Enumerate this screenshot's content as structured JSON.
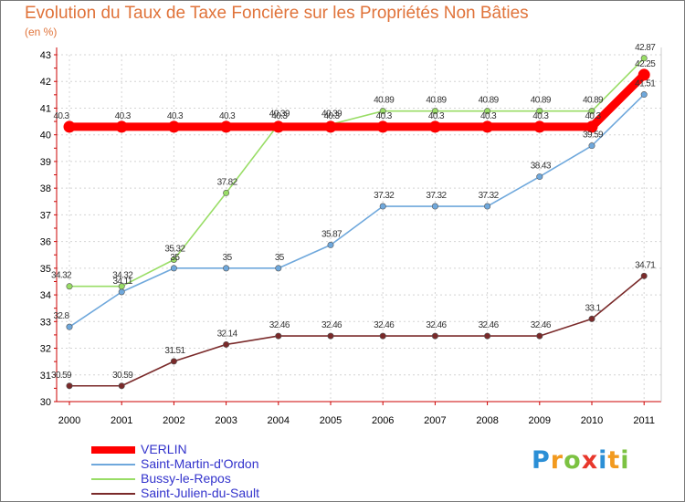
{
  "chart_data": {
    "type": "line",
    "title": "Evolution du Taux de Taxe Foncière sur les Propriétés Non Bâties",
    "subtitle": "(en %)",
    "xlabel": "",
    "ylabel": "(en %)",
    "categories": [
      "2000",
      "2001",
      "2002",
      "2003",
      "2004",
      "2005",
      "2006",
      "2007",
      "2008",
      "2009",
      "2010",
      "2011"
    ],
    "ylim": [
      30,
      43
    ],
    "yticks": [
      "30",
      "31",
      "32",
      "33",
      "34",
      "35",
      "36",
      "37",
      "38",
      "39",
      "40",
      "41",
      "42",
      "43"
    ],
    "grid": true,
    "series": [
      {
        "name": "VERLIN",
        "color": "#ff0000",
        "values": [
          40.3,
          40.3,
          40.3,
          40.3,
          40.3,
          40.3,
          40.3,
          40.3,
          40.3,
          40.3,
          40.3,
          42.25
        ],
        "labels": [
          "40.3",
          "40.3",
          "40.3",
          "40.3",
          "40.3",
          "40.3",
          "40.3",
          "40.3",
          "40.3",
          "40.3",
          "40.3",
          "42.25"
        ]
      },
      {
        "name": "Saint-Martin-d'Ordon",
        "color": "#6fa8dc",
        "values": [
          32.8,
          34.11,
          35,
          35,
          35,
          35.87,
          37.32,
          37.32,
          37.32,
          38.43,
          39.59,
          41.51
        ],
        "labels": [
          "32.8",
          "34.11",
          "35",
          "35",
          "35",
          "35.87",
          "37.32",
          "37.32",
          "37.32",
          "38.43",
          "39.59",
          "41.51"
        ]
      },
      {
        "name": "Bussy-le-Repos",
        "color": "#99dd66",
        "values": [
          34.32,
          34.32,
          35.32,
          37.82,
          40.39,
          40.39,
          40.89,
          40.89,
          40.89,
          40.89,
          40.89,
          42.87
        ],
        "labels": [
          "34.32",
          "34.32",
          "35.32",
          "37.82",
          "40.39",
          "40.39",
          "40.89",
          "40.89",
          "40.89",
          "40.89",
          "40.89",
          "42.87"
        ]
      },
      {
        "name": "Saint-Julien-du-Sault",
        "color": "#7a2a2a",
        "values": [
          30.59,
          30.59,
          31.51,
          32.14,
          32.46,
          32.46,
          32.46,
          32.46,
          32.46,
          32.46,
          33.1,
          34.71
        ],
        "labels": [
          "30.59",
          "30.59",
          "31.51",
          "32.14",
          "32.46",
          "32.46",
          "32.46",
          "32.46",
          "32.46",
          "32.46",
          "33.1",
          "34.71"
        ]
      }
    ]
  },
  "logo": {
    "text": "Proxiti"
  }
}
